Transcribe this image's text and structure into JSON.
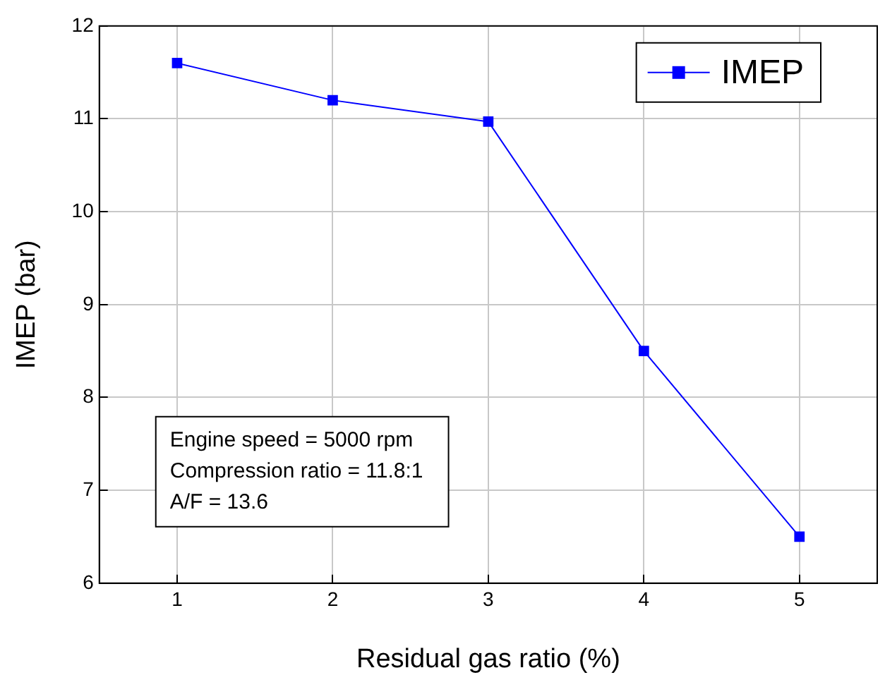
{
  "chart_data": {
    "type": "line",
    "xlabel": "Residual gas ratio (%)",
    "ylabel": "IMEP (bar)",
    "x": [
      1,
      2,
      3,
      4,
      5
    ],
    "series": [
      {
        "name": "IMEP",
        "color": "#0000ff",
        "values": [
          11.6,
          11.2,
          10.97,
          8.5,
          6.5
        ]
      }
    ],
    "xlim": [
      0.5,
      5.5
    ],
    "xticks": [
      1,
      2,
      3,
      4,
      5
    ],
    "ylim": [
      6,
      12
    ],
    "yticks": [
      6,
      7,
      8,
      9,
      10,
      11,
      12
    ],
    "grid": true,
    "legend": "top right",
    "marker": "square",
    "line_style": "solid",
    "annotations": [
      "Engine speed = 5000 rpm",
      "Compression ratio = 11.8:1",
      "A/F = 13.6"
    ]
  }
}
